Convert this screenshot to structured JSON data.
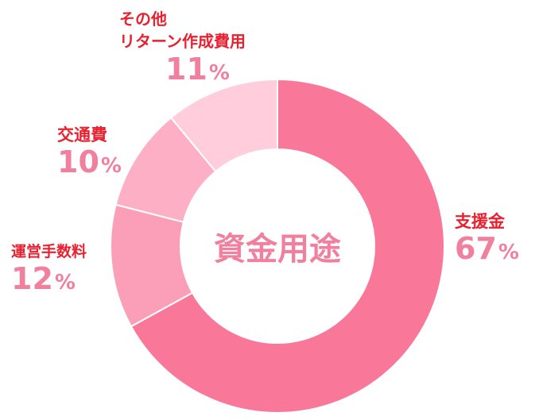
{
  "chart_data": {
    "type": "pie",
    "title": "資金用途",
    "unit": "%",
    "slices": [
      {
        "label": "支援金",
        "value": 67,
        "color": "#f9789a"
      },
      {
        "label": "運営手数料",
        "value": 12,
        "color": "#fb9fb8"
      },
      {
        "label": "交通費",
        "value": 10,
        "color": "#fdb0c5"
      },
      {
        "label": "その他\nリターン作成費用",
        "value": 11,
        "color": "#ffcddc"
      }
    ]
  }
}
